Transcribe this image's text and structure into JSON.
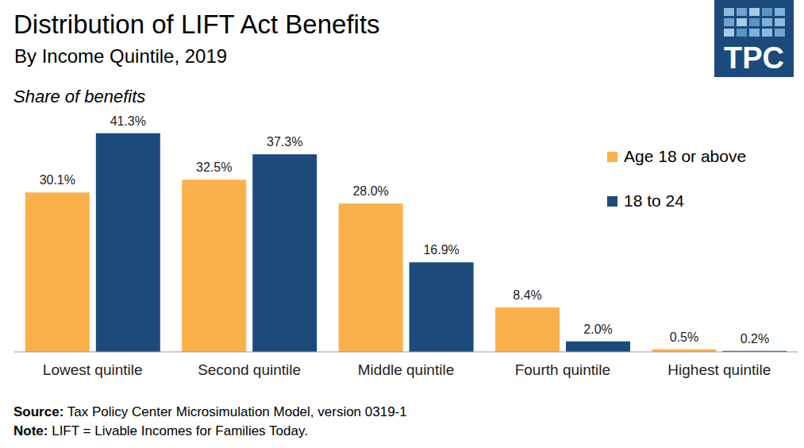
{
  "chart_data": {
    "type": "bar",
    "title": "Distribution of LIFT Act Benefits",
    "subtitle": "By Income Quintile, 2019",
    "y_label": "Share of benefits",
    "logo_text": "TPC",
    "source": {
      "label": "Source:",
      "text": "Tax Policy Center Microsimulation Model, version 0319-1"
    },
    "note": {
      "label": "Note:",
      "text": "LIFT = Livable Incomes for Families Today."
    },
    "categories": [
      "Lowest quintile",
      "Second quintile",
      "Middle quintile",
      "Fourth quintile",
      "Highest quintile"
    ],
    "series": [
      {
        "name": "Age 18 or above",
        "color": "#fbb14b",
        "values": [
          30.1,
          32.5,
          28.0,
          8.4,
          0.5
        ],
        "value_labels": [
          "30.1%",
          "32.5%",
          "28.0%",
          "8.4%",
          "0.5%"
        ]
      },
      {
        "name": "18 to 24",
        "color": "#1b4a7b",
        "values": [
          41.3,
          37.3,
          16.9,
          2.0,
          0.2
        ],
        "value_labels": [
          "41.3%",
          "37.3%",
          "16.9%",
          "2.0%",
          "0.2%"
        ]
      }
    ],
    "ylim": [
      0,
      45
    ],
    "grid": false,
    "legend": "top right",
    "data_labels": true,
    "tick_labels": "x"
  }
}
